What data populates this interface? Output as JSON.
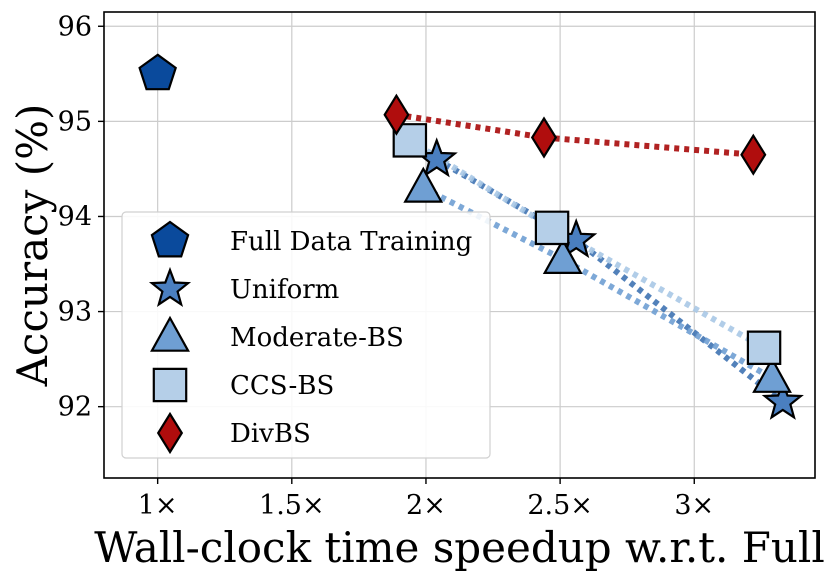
{
  "chart_data": {
    "type": "scatter",
    "title": "",
    "xlabel": "Wall-clock time speedup w.r.t. Full",
    "ylabel": "Accuracy (%)",
    "xlim": [
      0.8,
      3.45
    ],
    "ylim": [
      91.25,
      96.15
    ],
    "x_ticks": [
      1.0,
      1.5,
      2.0,
      2.5,
      3.0
    ],
    "x_tick_labels": [
      "1×",
      "1.5×",
      "2×",
      "2.5×",
      "3×"
    ],
    "y_ticks": [
      92,
      93,
      94,
      95,
      96
    ],
    "y_tick_labels": [
      "92",
      "93",
      "94",
      "95",
      "96"
    ],
    "grid": true,
    "legend_position": "lower-left",
    "series": [
      {
        "name": "Full Data Training",
        "marker": "pentagon",
        "color": "#0a4a9c",
        "line": false,
        "points": [
          {
            "x": 1.0,
            "y": 95.5
          }
        ]
      },
      {
        "name": "Uniform",
        "marker": "star",
        "color": "#4a7fc0",
        "line": true,
        "line_color": "#3f73b3",
        "points": [
          {
            "x": 2.04,
            "y": 94.6
          },
          {
            "x": 2.56,
            "y": 93.75
          },
          {
            "x": 3.33,
            "y": 92.05
          }
        ]
      },
      {
        "name": "Moderate-BS",
        "marker": "triangle",
        "color": "#6f9fd3",
        "line": true,
        "line_color": "#6f9fd3",
        "points": [
          {
            "x": 1.99,
            "y": 94.3
          },
          {
            "x": 2.51,
            "y": 93.55
          },
          {
            "x": 3.29,
            "y": 92.3
          }
        ]
      },
      {
        "name": "CCS-BS",
        "marker": "square",
        "color": "#b5cfe8",
        "line": true,
        "line_color": "#a9c8e6",
        "points": [
          {
            "x": 1.94,
            "y": 94.8
          },
          {
            "x": 2.47,
            "y": 93.88
          },
          {
            "x": 3.26,
            "y": 92.62
          }
        ]
      },
      {
        "name": "DivBS",
        "marker": "diamond",
        "color": "#b00d0d",
        "line": true,
        "line_color": "#a80a0a",
        "points": [
          {
            "x": 1.89,
            "y": 95.07
          },
          {
            "x": 2.44,
            "y": 94.83
          },
          {
            "x": 3.22,
            "y": 94.65
          }
        ]
      }
    ]
  }
}
